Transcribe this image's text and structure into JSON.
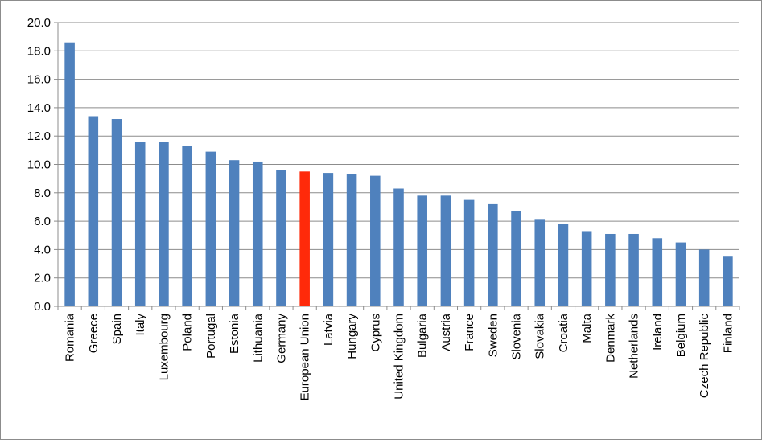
{
  "chart_data": {
    "type": "bar",
    "title": "",
    "xlabel": "",
    "ylabel": "",
    "ylim": [
      0,
      20
    ],
    "ytick_step": 2,
    "ytick_labels": [
      "0.0",
      "2.0",
      "4.0",
      "6.0",
      "8.0",
      "10.0",
      "12.0",
      "14.0",
      "16.0",
      "18.0",
      "20.0"
    ],
    "grid": true,
    "legend": "none",
    "bar_color": "#4f81bd",
    "highlight_color": "#ff2a0a",
    "highlight_category": "European Union",
    "categories": [
      "Romania",
      "Greece",
      "Spain",
      "Italy",
      "Luxembourg",
      "Poland",
      "Portugal",
      "Estonia",
      "Lithuania",
      "Germany",
      "European Union",
      "Latvia",
      "Hungary",
      "Cyprus",
      "United Kingdom",
      "Bulgaria",
      "Austria",
      "France",
      "Sweden",
      "Slovenia",
      "Slovakia",
      "Croatia",
      "Malta",
      "Denmark",
      "Netherlands",
      "Ireland",
      "Belgium",
      "Czech Republic",
      "Finland"
    ],
    "values": [
      18.6,
      13.4,
      13.2,
      11.6,
      11.6,
      11.3,
      10.9,
      10.3,
      10.2,
      9.6,
      9.5,
      9.4,
      9.3,
      9.2,
      8.3,
      7.8,
      7.8,
      7.5,
      7.2,
      6.7,
      6.1,
      5.8,
      5.3,
      5.1,
      5.1,
      4.8,
      4.5,
      4.0,
      3.5
    ]
  }
}
